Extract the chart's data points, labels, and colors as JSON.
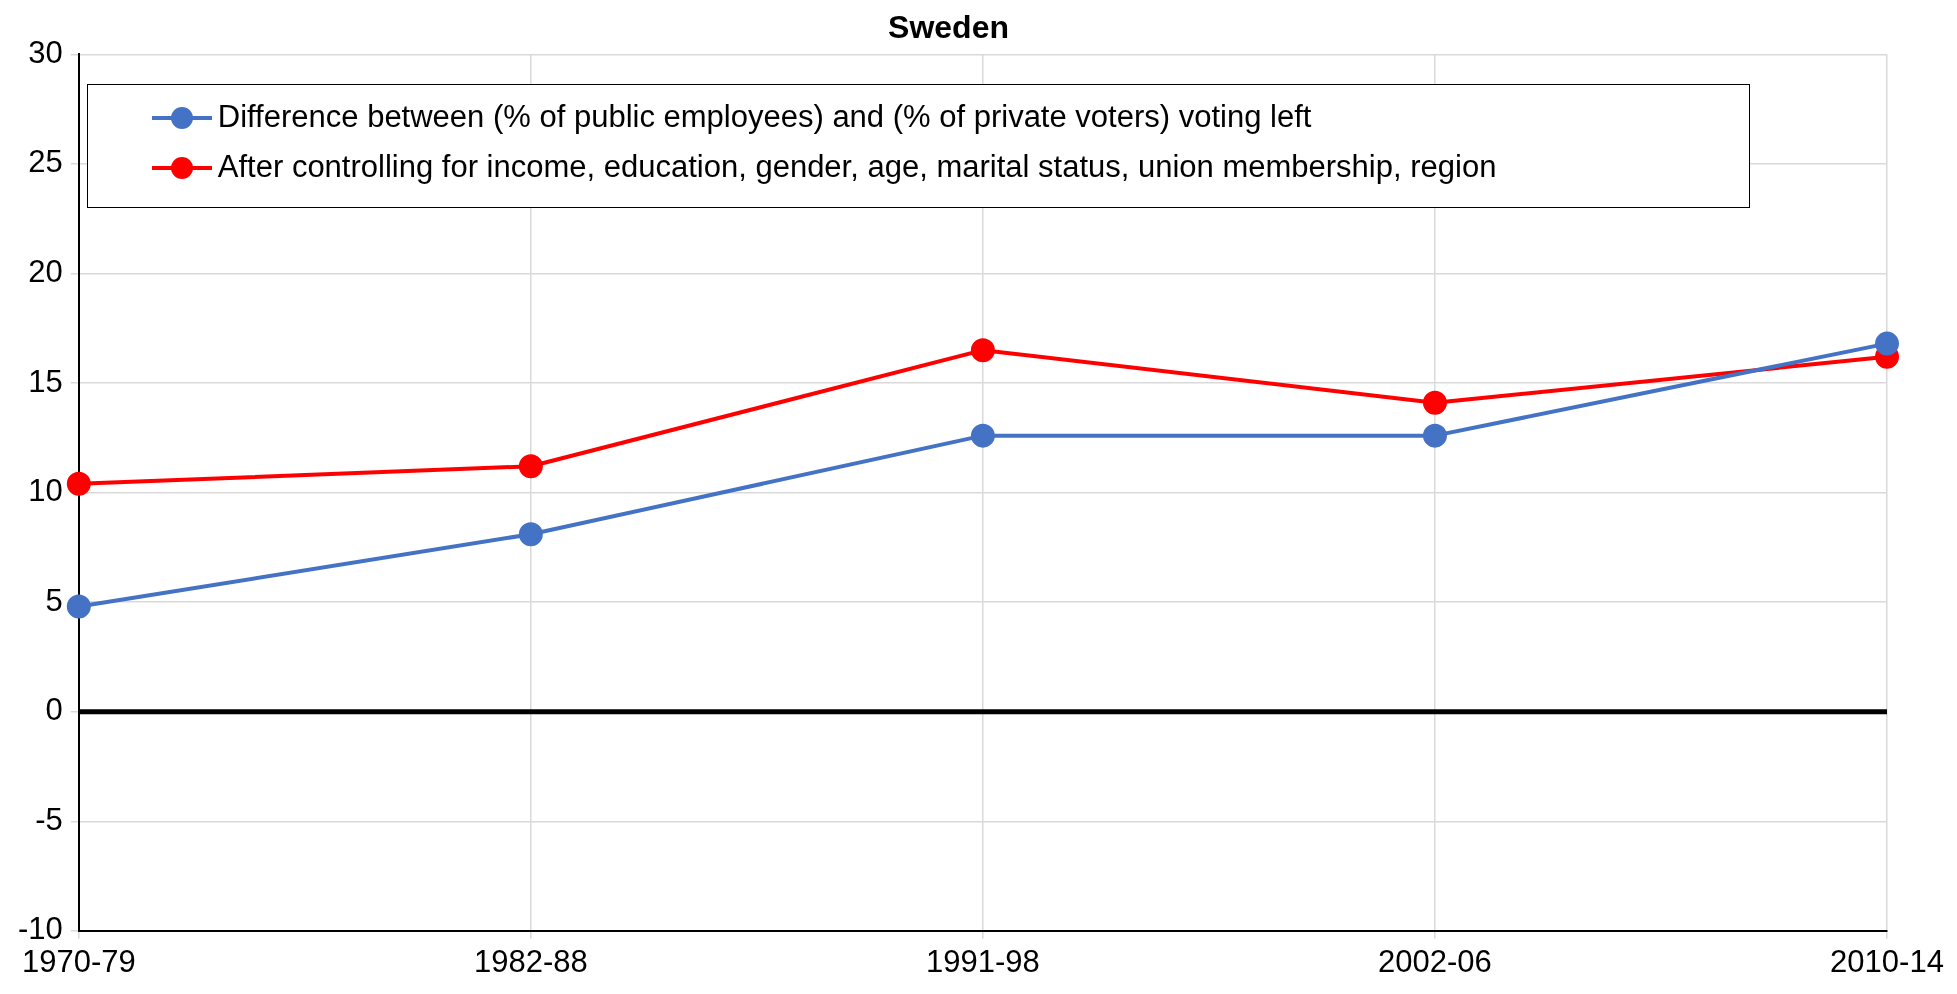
{
  "chart_data": {
    "type": "line",
    "title": "Sweden",
    "categories": [
      "1970-79",
      "1982-88",
      "1991-98",
      "2002-06",
      "2010-14"
    ],
    "series": [
      {
        "name": "Difference between (% of public employees) and (% of private voters) voting left",
        "color": "#4472c4",
        "values": [
          4.8,
          8.1,
          12.6,
          12.6,
          16.8
        ]
      },
      {
        "name": "After controlling for income, education, gender, age, marital  status, union membership, region",
        "color": "#ff0000",
        "values": [
          10.4,
          11.2,
          16.5,
          14.1,
          16.2
        ]
      }
    ],
    "ylim": [
      -10,
      30
    ],
    "yticks": [
      -10,
      -5,
      0,
      5,
      10,
      15,
      20,
      25,
      30
    ],
    "ref_lines": [
      {
        "axis": "y",
        "value": 0,
        "color": "#000000"
      }
    ],
    "grid": true,
    "legend": "top",
    "marker": "circle",
    "line_style": "solid"
  }
}
